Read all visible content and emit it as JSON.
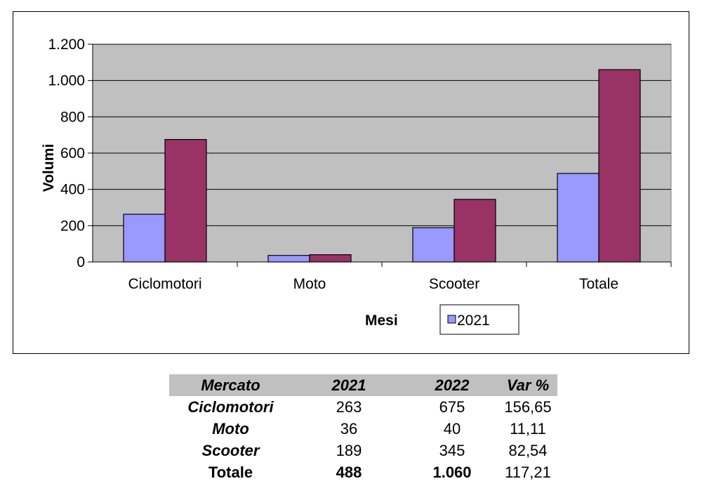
{
  "chart_data": {
    "type": "bar",
    "categories": [
      "Ciclomotori",
      "Moto",
      "Scooter",
      "Totale"
    ],
    "series": [
      {
        "name": "2021",
        "values": [
          263,
          36,
          189,
          488
        ],
        "color": "#9999ff"
      },
      {
        "values": [
          675,
          40,
          345,
          1060
        ],
        "color": "#993366"
      }
    ],
    "ylim": [
      0,
      1200
    ],
    "yticks": [
      0,
      200,
      400,
      600,
      800,
      1000,
      1200
    ],
    "ytick_labels": [
      "0",
      "200",
      "400",
      "600",
      "800",
      "1.000",
      "1.200"
    ],
    "xlabel": "Mesi",
    "ylabel": "Volumi",
    "legend": {
      "placement": "bottom",
      "entries": [
        "2021"
      ]
    },
    "plot_background": "#c0c0c0",
    "grid": true
  },
  "table": {
    "headers": [
      "Mercato",
      "2021",
      "2022",
      "Var %"
    ],
    "rows": [
      {
        "label": "Ciclomotori",
        "v2021": "263",
        "v2022": "675",
        "var": "156,65"
      },
      {
        "label": "Moto",
        "v2021": "36",
        "v2022": "40",
        "var": "11,11"
      },
      {
        "label": "Scooter",
        "v2021": "189",
        "v2022": "345",
        "var": "82,54"
      },
      {
        "label": "Totale",
        "v2021": "488",
        "v2022": "1.060",
        "var": "117,21"
      }
    ]
  }
}
